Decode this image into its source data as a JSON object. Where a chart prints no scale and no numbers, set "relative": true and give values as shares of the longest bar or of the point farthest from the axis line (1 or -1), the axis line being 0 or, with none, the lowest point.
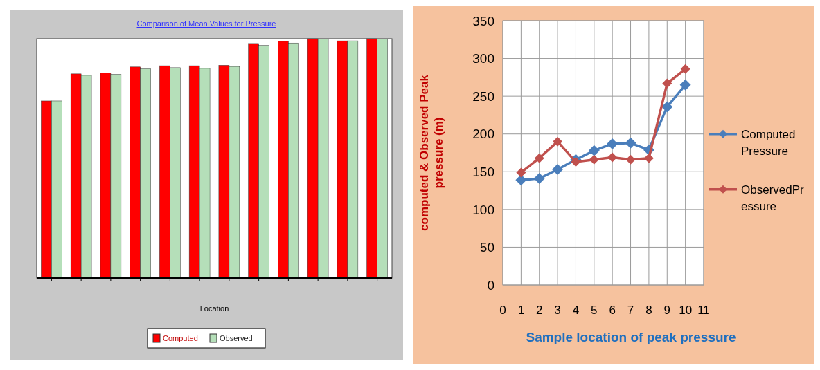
{
  "chart_data": [
    {
      "type": "bar",
      "title": "Comparison of Mean Values for Pressure",
      "xlabel": "Location",
      "relative": true,
      "legend": "bottom",
      "categories": [
        null,
        null,
        null,
        null,
        null,
        null,
        null,
        null,
        null,
        null,
        null,
        null
      ],
      "series": [
        {
          "name": "Computed",
          "color": "#ff0000",
          "values": [
            0.74,
            0.853,
            0.857,
            0.882,
            0.887,
            0.887,
            0.889,
            0.98,
            0.989,
            1,
            0.991,
            1
          ]
        },
        {
          "name": "Observed",
          "color": "#b5dfb9",
          "values": [
            0.74,
            0.847,
            0.851,
            0.874,
            0.879,
            0.876,
            0.884,
            0.972,
            0.982,
            0.998,
            0.991,
            0.998
          ]
        }
      ]
    },
    {
      "type": "line",
      "xlabel": "Sample location of peak pressure",
      "ylabel": "computed & Observed Peak pressure (m)",
      "x": [
        1,
        2,
        3,
        4,
        5,
        6,
        7,
        8,
        9,
        10
      ],
      "xlim": [
        0,
        11
      ],
      "xticks": [
        0,
        1,
        2,
        3,
        4,
        5,
        6,
        7,
        8,
        9,
        10,
        11
      ],
      "ylim": [
        0,
        350
      ],
      "yticks": [
        0,
        50,
        100,
        150,
        200,
        250,
        300,
        350
      ],
      "grid": true,
      "legend": "right",
      "marker": "diamond",
      "line_style": "solid",
      "series": [
        {
          "name": "Computed Pressure",
          "color": "#4a7ebb",
          "values": [
            139,
            141,
            153,
            166,
            178,
            187,
            188,
            179,
            236,
            265
          ]
        },
        {
          "name": "ObservedPressure",
          "color": "#c0504d",
          "values": [
            149,
            168,
            190,
            163,
            166,
            169,
            166,
            168,
            267,
            286
          ]
        }
      ]
    }
  ]
}
